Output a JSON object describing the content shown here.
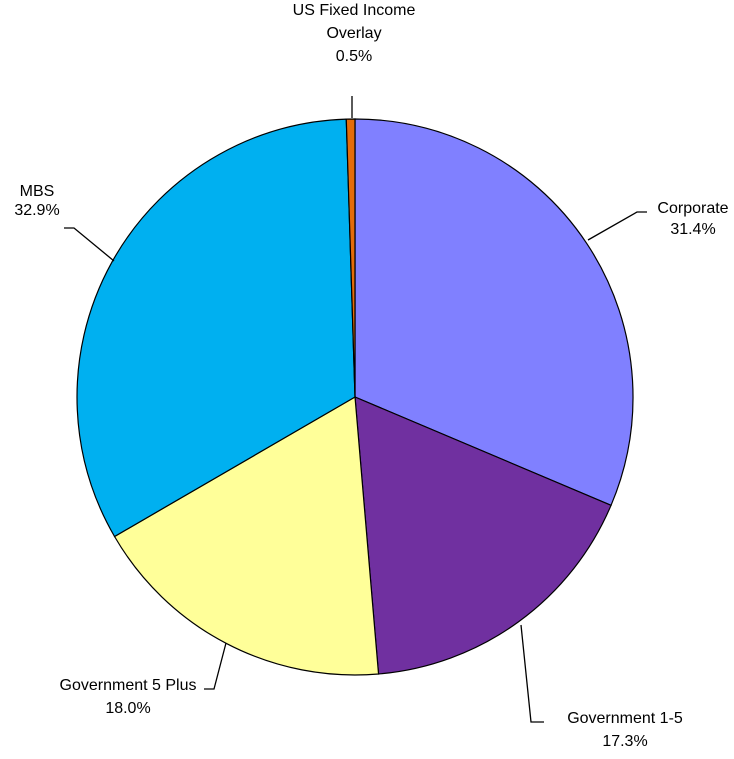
{
  "chart_data": {
    "type": "pie",
    "title": "",
    "start_angle_deg": 0,
    "direction": "clockwise",
    "slices": [
      {
        "label": "Corporate",
        "label_lines": [
          "Corporate"
        ],
        "value": 31.4,
        "value_label": "31.4%",
        "color": "#8080ff"
      },
      {
        "label": "Government 1-5",
        "label_lines": [
          "Government 1-5"
        ],
        "value": 17.3,
        "value_label": "17.3%",
        "color": "#7030a0"
      },
      {
        "label": "Government 5 Plus",
        "label_lines": [
          "Government 5 Plus"
        ],
        "value": 18.0,
        "value_label": "18.0%",
        "color": "#ffff99"
      },
      {
        "label": "MBS",
        "label_lines": [
          "MBS"
        ],
        "value": 32.9,
        "value_label": "32.9%",
        "color": "#00b0f0"
      },
      {
        "label": "US Fixed Income Overlay",
        "label_lines": [
          "US Fixed Income",
          "Overlay"
        ],
        "value": 0.5,
        "value_label": "0.5%",
        "color": "#e46c0a"
      }
    ]
  }
}
